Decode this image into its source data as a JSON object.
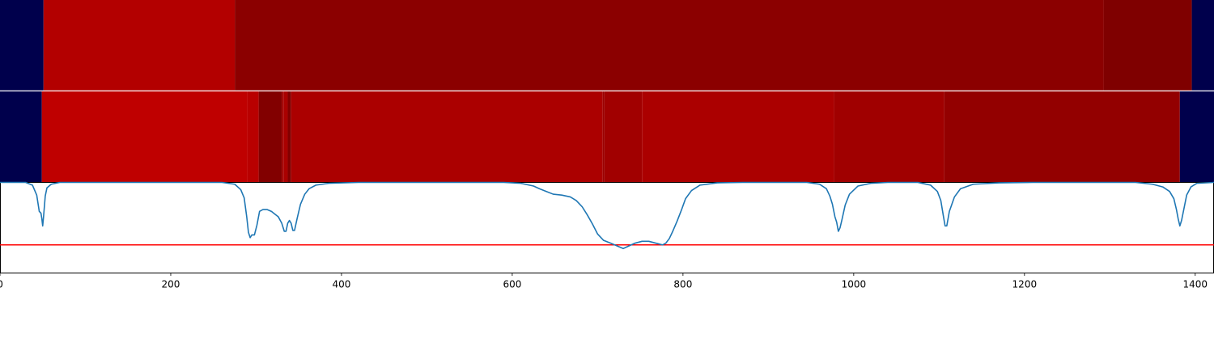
{
  "chart_data": [
    {
      "type": "heatmap",
      "segments": [
        {
          "start": 0,
          "end": 51,
          "color": "#00004c"
        },
        {
          "start": 51,
          "end": 275,
          "color": "#b30000"
        },
        {
          "start": 275,
          "end": 1293,
          "color": "#8b0000"
        },
        {
          "start": 1293,
          "end": 1396,
          "color": "#7f0000"
        },
        {
          "start": 1396,
          "end": 1422,
          "color": "#00004c"
        }
      ]
    },
    {
      "type": "heatmap",
      "segments": [
        {
          "start": 0,
          "end": 49,
          "color": "#00004c"
        },
        {
          "start": 49,
          "end": 290,
          "color": "#bf0000"
        },
        {
          "start": 290,
          "end": 303,
          "color": "#b90000"
        },
        {
          "start": 303,
          "end": 330,
          "color": "#820000"
        },
        {
          "start": 330,
          "end": 332,
          "color": "#a00000"
        },
        {
          "start": 332,
          "end": 337,
          "color": "#aa0000"
        },
        {
          "start": 337,
          "end": 341,
          "color": "#820000"
        },
        {
          "start": 341,
          "end": 706,
          "color": "#ab0000"
        },
        {
          "start": 706,
          "end": 708,
          "color": "#9a0000"
        },
        {
          "start": 708,
          "end": 752,
          "color": "#a10000"
        },
        {
          "start": 752,
          "end": 977,
          "color": "#ab0000"
        },
        {
          "start": 977,
          "end": 1106,
          "color": "#a00000"
        },
        {
          "start": 1106,
          "end": 1382,
          "color": "#930000"
        },
        {
          "start": 1382,
          "end": 1422,
          "color": "#00004c"
        }
      ]
    },
    {
      "type": "line",
      "xlim": [
        0,
        1422
      ],
      "ylim": [
        0,
        1
      ],
      "x_ticks": [
        0,
        200,
        400,
        600,
        800,
        1000,
        1200,
        1400
      ],
      "threshold": 0.31,
      "threshold_color": "#ff0000",
      "series_color": "#1f77b4",
      "points": [
        [
          0,
          1.0
        ],
        [
          30,
          1.0
        ],
        [
          38,
          0.97
        ],
        [
          43,
          0.86
        ],
        [
          46,
          0.68
        ],
        [
          48,
          0.66
        ],
        [
          49,
          0.6
        ],
        [
          50,
          0.52
        ],
        [
          51,
          0.62
        ],
        [
          53,
          0.85
        ],
        [
          55,
          0.94
        ],
        [
          60,
          0.98
        ],
        [
          70,
          1.0
        ],
        [
          260,
          1.0
        ],
        [
          275,
          0.98
        ],
        [
          282,
          0.92
        ],
        [
          286,
          0.83
        ],
        [
          289,
          0.62
        ],
        [
          291,
          0.45
        ],
        [
          293,
          0.39
        ],
        [
          295,
          0.42
        ],
        [
          298,
          0.42
        ],
        [
          301,
          0.53
        ],
        [
          304,
          0.68
        ],
        [
          308,
          0.7
        ],
        [
          313,
          0.7
        ],
        [
          318,
          0.68
        ],
        [
          322,
          0.65
        ],
        [
          326,
          0.62
        ],
        [
          330,
          0.55
        ],
        [
          333,
          0.46
        ],
        [
          335,
          0.46
        ],
        [
          337,
          0.55
        ],
        [
          339,
          0.58
        ],
        [
          341,
          0.55
        ],
        [
          343,
          0.47
        ],
        [
          345,
          0.47
        ],
        [
          348,
          0.6
        ],
        [
          352,
          0.76
        ],
        [
          357,
          0.87
        ],
        [
          362,
          0.93
        ],
        [
          370,
          0.97
        ],
        [
          385,
          0.99
        ],
        [
          420,
          1.0
        ],
        [
          590,
          1.0
        ],
        [
          610,
          0.99
        ],
        [
          625,
          0.96
        ],
        [
          632,
          0.93
        ],
        [
          640,
          0.9
        ],
        [
          648,
          0.87
        ],
        [
          658,
          0.86
        ],
        [
          668,
          0.84
        ],
        [
          675,
          0.8
        ],
        [
          682,
          0.73
        ],
        [
          688,
          0.64
        ],
        [
          694,
          0.54
        ],
        [
          700,
          0.43
        ],
        [
          707,
          0.36
        ],
        [
          715,
          0.33
        ],
        [
          725,
          0.29
        ],
        [
          730,
          0.27
        ],
        [
          737,
          0.3
        ],
        [
          744,
          0.33
        ],
        [
          752,
          0.35
        ],
        [
          760,
          0.35
        ],
        [
          768,
          0.33
        ],
        [
          772,
          0.32
        ],
        [
          776,
          0.31
        ],
        [
          780,
          0.33
        ],
        [
          784,
          0.38
        ],
        [
          788,
          0.46
        ],
        [
          793,
          0.57
        ],
        [
          798,
          0.69
        ],
        [
          803,
          0.82
        ],
        [
          810,
          0.91
        ],
        [
          820,
          0.97
        ],
        [
          840,
          0.995
        ],
        [
          870,
          1.0
        ],
        [
          945,
          1.0
        ],
        [
          960,
          0.98
        ],
        [
          968,
          0.93
        ],
        [
          972,
          0.85
        ],
        [
          975,
          0.76
        ],
        [
          978,
          0.62
        ],
        [
          980,
          0.56
        ],
        [
          982,
          0.46
        ],
        [
          984,
          0.5
        ],
        [
          986,
          0.58
        ],
        [
          990,
          0.75
        ],
        [
          995,
          0.87
        ],
        [
          1005,
          0.96
        ],
        [
          1020,
          0.99
        ],
        [
          1040,
          1.0
        ],
        [
          1075,
          1.0
        ],
        [
          1090,
          0.97
        ],
        [
          1098,
          0.9
        ],
        [
          1102,
          0.8
        ],
        [
          1105,
          0.63
        ],
        [
          1107,
          0.52
        ],
        [
          1109,
          0.52
        ],
        [
          1112,
          0.68
        ],
        [
          1118,
          0.84
        ],
        [
          1125,
          0.93
        ],
        [
          1140,
          0.98
        ],
        [
          1170,
          0.995
        ],
        [
          1210,
          1.0
        ],
        [
          1330,
          1.0
        ],
        [
          1350,
          0.98
        ],
        [
          1362,
          0.95
        ],
        [
          1370,
          0.9
        ],
        [
          1375,
          0.82
        ],
        [
          1378,
          0.7
        ],
        [
          1380,
          0.6
        ],
        [
          1382,
          0.52
        ],
        [
          1384,
          0.58
        ],
        [
          1387,
          0.72
        ],
        [
          1390,
          0.86
        ],
        [
          1395,
          0.95
        ],
        [
          1402,
          0.99
        ],
        [
          1422,
          1.0
        ]
      ]
    }
  ]
}
